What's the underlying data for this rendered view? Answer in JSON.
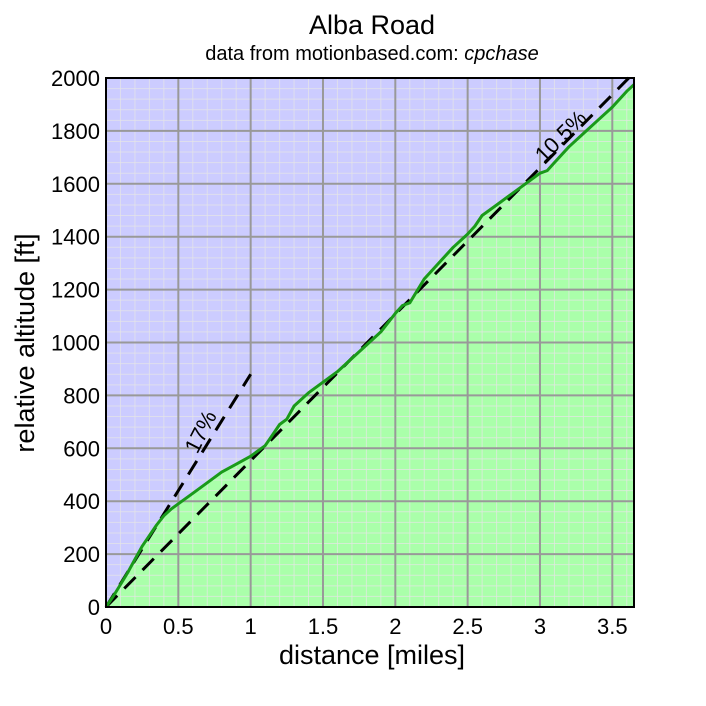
{
  "chart_data": {
    "type": "area",
    "title": "Alba Road",
    "subtitle_prefix": "data from motionbased.com: ",
    "subtitle_user": "cpchase",
    "xlabel": "distance [miles]",
    "ylabel": "relative altitude [ft]",
    "xlim": [
      0,
      3.65
    ],
    "ylim": [
      0,
      2000
    ],
    "xticks": [
      0,
      0.5,
      1,
      1.5,
      2,
      2.5,
      3,
      3.5
    ],
    "xtick_labels": [
      "0",
      "0.5",
      "1",
      "1.5",
      "2",
      "2.5",
      "3",
      "3.5"
    ],
    "yticks": [
      0,
      200,
      400,
      600,
      800,
      1000,
      1200,
      1400,
      1600,
      1800,
      2000
    ],
    "ytick_labels": [
      "0",
      "200",
      "400",
      "600",
      "800",
      "1000",
      "1200",
      "1400",
      "1600",
      "1800",
      "2000"
    ],
    "grid": true,
    "colors": {
      "above": "#ccccff",
      "fill": "#aaffaa",
      "line": "#1a9a1a",
      "grid_major": "#999999",
      "grid_minor": "#e6e6e6",
      "reference": "#000000"
    },
    "profile": {
      "x": [
        0,
        0.05,
        0.1,
        0.15,
        0.2,
        0.25,
        0.3,
        0.35,
        0.4,
        0.45,
        0.5,
        0.6,
        0.7,
        0.8,
        0.9,
        1.0,
        1.1,
        1.15,
        1.2,
        1.25,
        1.3,
        1.4,
        1.5,
        1.6,
        1.7,
        1.8,
        1.9,
        2.0,
        2.05,
        2.1,
        2.2,
        2.3,
        2.4,
        2.5,
        2.55,
        2.6,
        2.7,
        2.8,
        2.9,
        3.0,
        3.05,
        3.1,
        3.2,
        3.3,
        3.4,
        3.5,
        3.6,
        3.65
      ],
      "y": [
        0,
        40,
        85,
        130,
        180,
        230,
        270,
        310,
        345,
        370,
        390,
        430,
        470,
        510,
        540,
        570,
        610,
        650,
        690,
        710,
        760,
        810,
        850,
        890,
        940,
        990,
        1040,
        1110,
        1140,
        1150,
        1240,
        1300,
        1360,
        1410,
        1440,
        1480,
        1520,
        1560,
        1600,
        1640,
        1650,
        1680,
        1740,
        1790,
        1840,
        1890,
        1950,
        1975
      ]
    },
    "reference_lines": [
      {
        "label": "17%",
        "x": [
          0,
          1.0
        ],
        "y": [
          0,
          880
        ]
      },
      {
        "label": "10.5%",
        "x": [
          0,
          3.65
        ],
        "y": [
          0,
          2020
        ]
      }
    ]
  }
}
